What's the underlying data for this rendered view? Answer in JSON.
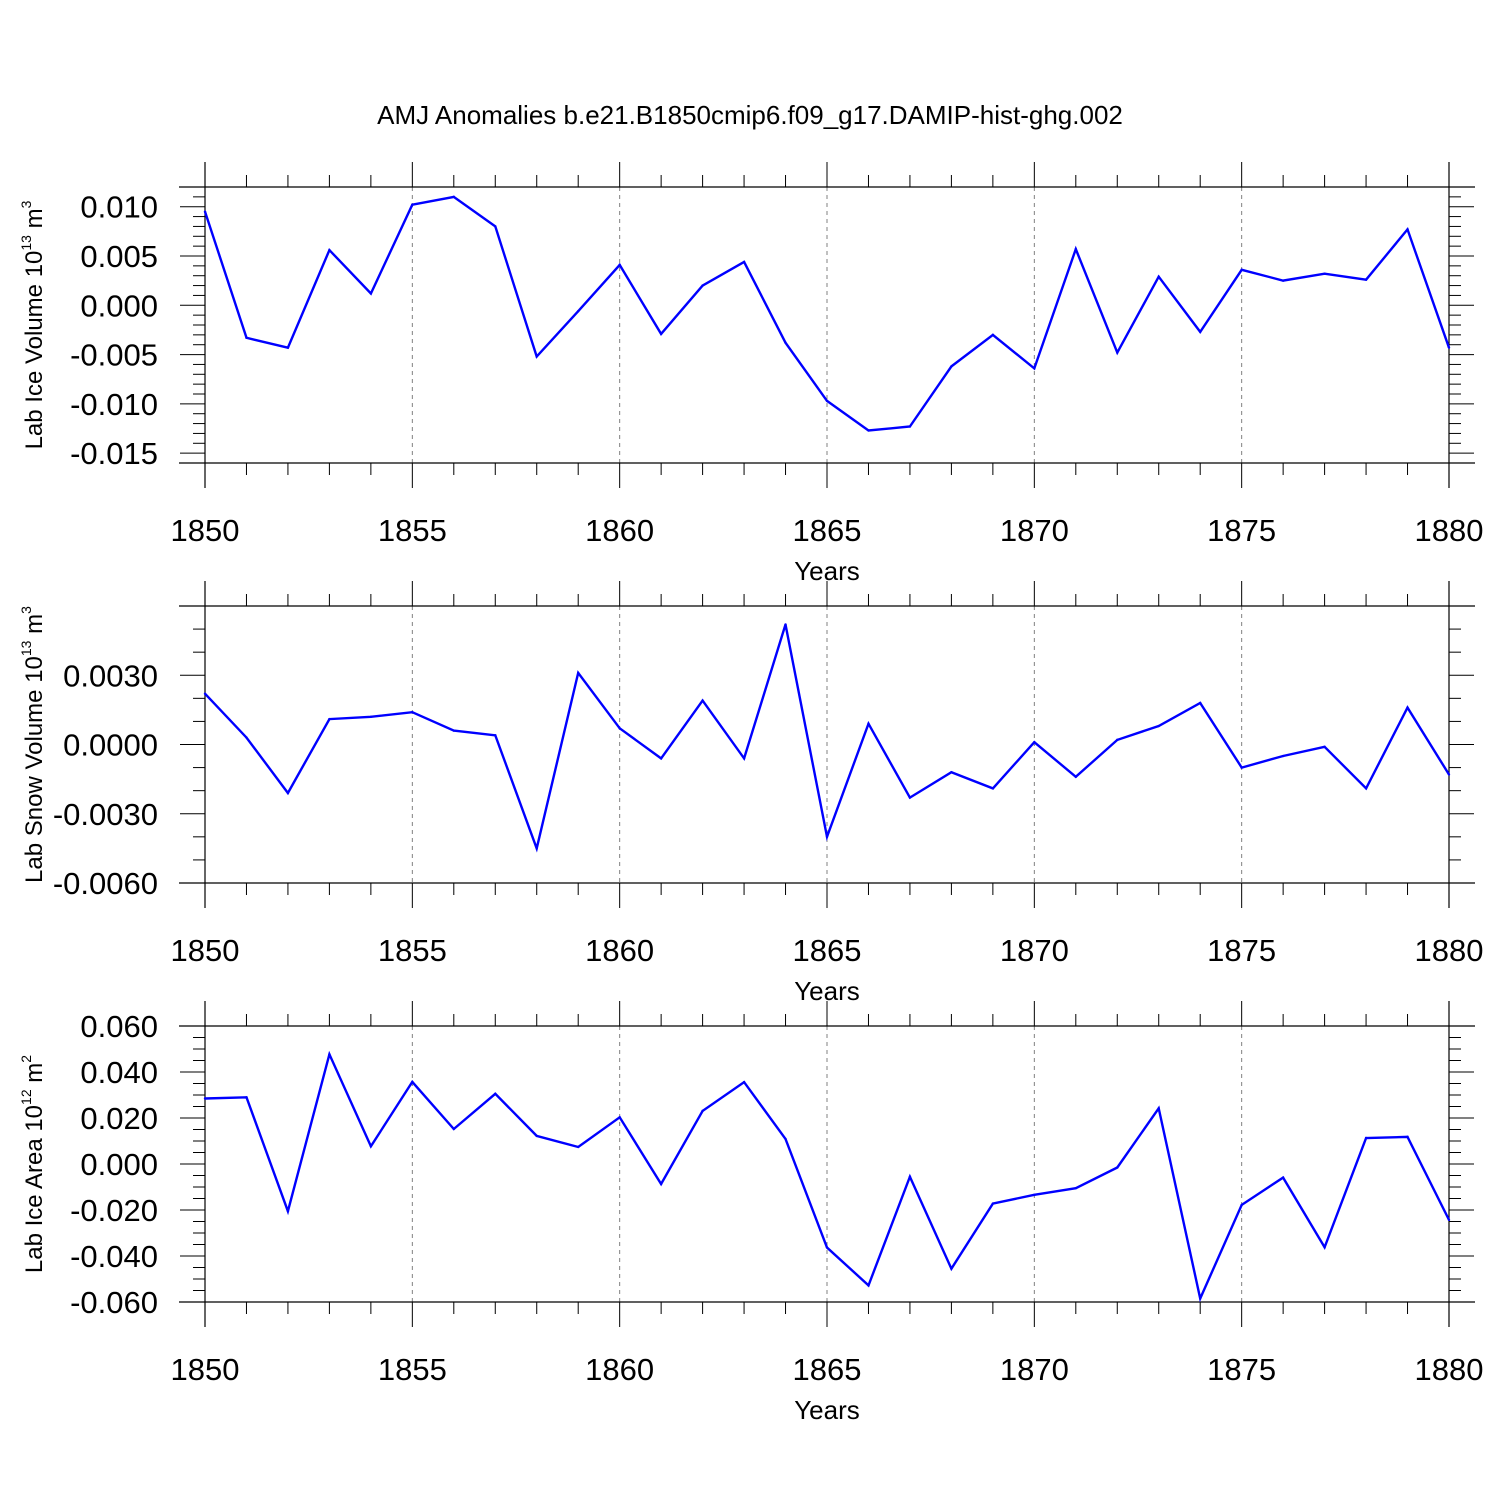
{
  "title": "AMJ Anomalies b.e21.B1850cmip6.f09_g17.DAMIP-hist-ghg.002",
  "colors": {
    "series": "#0000ff",
    "axis": "#000000",
    "grid": "#808080",
    "background": "#ffffff"
  },
  "chart_data": [
    {
      "type": "line",
      "ylabel": {
        "main": "Lab Ice Volume 10",
        "exponent": "13",
        "unit": " m",
        "unit_exponent": "3"
      },
      "xlabel": "Years",
      "xlim": [
        1850,
        1880
      ],
      "ylim": [
        -0.016,
        0.012
      ],
      "x_major_ticks": [
        1850,
        1855,
        1860,
        1865,
        1870,
        1875,
        1880
      ],
      "x_tick_labels": [
        "1850",
        "1855",
        "1860",
        "1865",
        "1870",
        "1875",
        "1880"
      ],
      "y_major_ticks": [
        -0.015,
        -0.01,
        -0.005,
        0.0,
        0.005,
        0.01
      ],
      "y_tick_labels": [
        "-0.015",
        "-0.010",
        "-0.005",
        "0.000",
        "0.005",
        "0.010"
      ],
      "y_minor_step": 0.001,
      "vertical_gridlines": [
        1855,
        1860,
        1865,
        1870,
        1875
      ],
      "x": [
        1850,
        1851,
        1852,
        1853,
        1854,
        1855,
        1856,
        1857,
        1858,
        1859,
        1860,
        1861,
        1862,
        1863,
        1864,
        1865,
        1866,
        1867,
        1868,
        1869,
        1870,
        1871,
        1872,
        1873,
        1874,
        1875,
        1876,
        1877,
        1878,
        1879,
        1880
      ],
      "values": [
        0.0095,
        -0.0033,
        -0.0043,
        0.0056,
        0.0012,
        0.0102,
        0.011,
        0.008,
        -0.0052,
        -0.0006,
        0.0041,
        -0.0029,
        0.002,
        0.0044,
        -0.0038,
        -0.0097,
        -0.0127,
        -0.0123,
        -0.0062,
        -0.003,
        -0.0064,
        0.0057,
        -0.0048,
        0.0029,
        -0.0027,
        0.0036,
        0.0025,
        0.0032,
        0.0026,
        0.0077,
        -0.0043
      ]
    },
    {
      "type": "line",
      "ylabel": {
        "main": "Lab Snow Volume 10",
        "exponent": "13",
        "unit": " m",
        "unit_exponent": "3"
      },
      "xlabel": "Years",
      "xlim": [
        1850,
        1880
      ],
      "ylim": [
        -0.006,
        0.006
      ],
      "x_major_ticks": [
        1850,
        1855,
        1860,
        1865,
        1870,
        1875,
        1880
      ],
      "x_tick_labels": [
        "1850",
        "1855",
        "1860",
        "1865",
        "1870",
        "1875",
        "1880"
      ],
      "y_major_ticks": [
        -0.006,
        -0.003,
        0.0,
        0.003
      ],
      "y_tick_labels": [
        "-0.0060",
        "-0.0030",
        "0.0000",
        "0.0030"
      ],
      "y_minor_step": 0.001,
      "vertical_gridlines": [
        1855,
        1860,
        1865,
        1870,
        1875
      ],
      "x": [
        1850,
        1851,
        1852,
        1853,
        1854,
        1855,
        1856,
        1857,
        1858,
        1859,
        1860,
        1861,
        1862,
        1863,
        1864,
        1865,
        1866,
        1867,
        1868,
        1869,
        1870,
        1871,
        1872,
        1873,
        1874,
        1875,
        1876,
        1877,
        1878,
        1879,
        1880
      ],
      "values": [
        0.0022,
        0.0003,
        -0.0021,
        0.0011,
        0.0012,
        0.0014,
        0.0006,
        0.0004,
        -0.0045,
        0.0031,
        0.0007,
        -0.0006,
        0.0019,
        -0.0006,
        0.0052,
        -0.004,
        0.0009,
        -0.0023,
        -0.0012,
        -0.0019,
        0.0001,
        -0.0014,
        0.0002,
        0.0008,
        0.0018,
        -0.001,
        -0.0005,
        -0.0001,
        -0.0019,
        0.0016,
        -0.0013
      ]
    },
    {
      "type": "line",
      "ylabel": {
        "main": "Lab Ice Area 10",
        "exponent": "12",
        "unit": " m",
        "unit_exponent": "2"
      },
      "xlabel": "Years",
      "xlim": [
        1850,
        1880
      ],
      "ylim": [
        -0.06,
        0.06
      ],
      "x_major_ticks": [
        1850,
        1855,
        1860,
        1865,
        1870,
        1875,
        1880
      ],
      "x_tick_labels": [
        "1850",
        "1855",
        "1860",
        "1865",
        "1870",
        "1875",
        "1880"
      ],
      "y_major_ticks": [
        -0.06,
        -0.04,
        -0.02,
        0.0,
        0.02,
        0.04,
        0.06
      ],
      "y_tick_labels": [
        "-0.060",
        "-0.040",
        "-0.020",
        "0.000",
        "0.020",
        "0.040",
        "0.060"
      ],
      "y_minor_step": 0.005,
      "vertical_gridlines": [
        1855,
        1860,
        1865,
        1870,
        1875
      ],
      "x": [
        1850,
        1851,
        1852,
        1853,
        1854,
        1855,
        1856,
        1857,
        1858,
        1859,
        1860,
        1861,
        1862,
        1863,
        1864,
        1865,
        1866,
        1867,
        1868,
        1869,
        1870,
        1871,
        1872,
        1873,
        1874,
        1875,
        1876,
        1877,
        1878,
        1879,
        1880
      ],
      "values": [
        0.0285,
        0.029,
        -0.0205,
        0.0477,
        0.0077,
        0.0357,
        0.0152,
        0.0305,
        0.0122,
        0.0074,
        0.0203,
        -0.0087,
        0.0231,
        0.0356,
        0.0109,
        -0.0363,
        -0.0528,
        -0.0055,
        -0.0455,
        -0.0172,
        -0.0134,
        -0.0105,
        -0.0015,
        0.0242,
        -0.0585,
        -0.0178,
        -0.0059,
        -0.0362,
        0.0113,
        0.0118,
        -0.0243
      ]
    }
  ]
}
